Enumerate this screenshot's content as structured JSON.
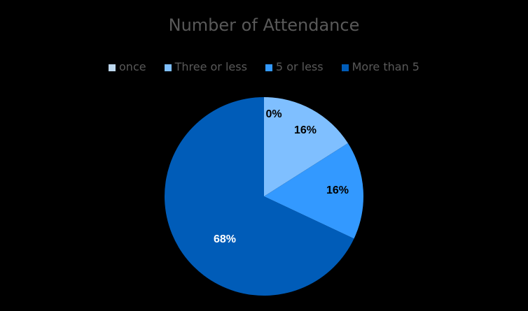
{
  "chart_data": {
    "type": "pie",
    "title": "Number of Attendance",
    "categories": [
      "once",
      "Three or less",
      "5 or less",
      "More than 5"
    ],
    "values": [
      0,
      16,
      16,
      68
    ],
    "labels": [
      "0%",
      "16%",
      "16%",
      "68%"
    ],
    "colors": [
      "#BDD7EE",
      "#7FBFFF",
      "#3399FF",
      "#005CB8"
    ],
    "legend_position": "top"
  },
  "legend": [
    {
      "label": "once",
      "color": "#BDD7EE"
    },
    {
      "label": "Three or less",
      "color": "#7FBFFF"
    },
    {
      "label": "5 or less",
      "color": "#3399FF"
    },
    {
      "label": "More than 5",
      "color": "#005CB8"
    }
  ]
}
